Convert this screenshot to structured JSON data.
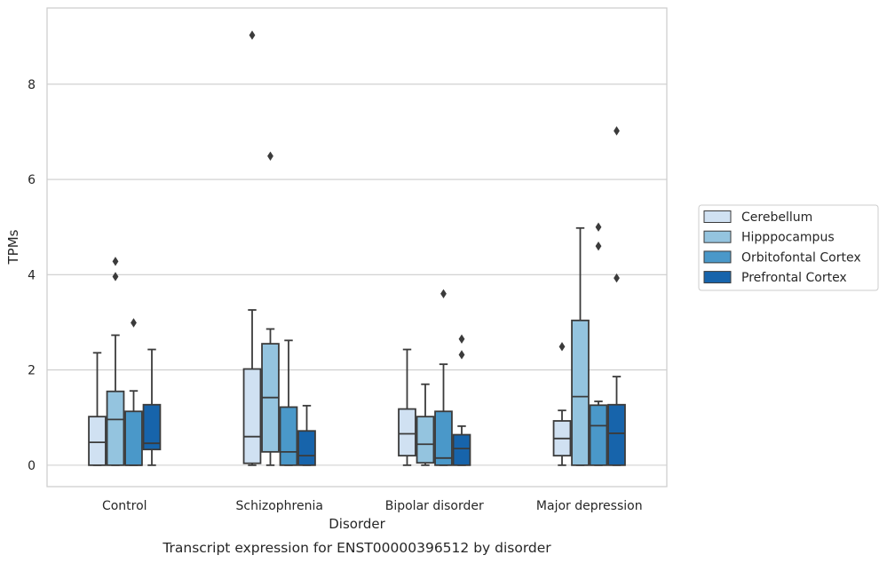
{
  "chart_data": {
    "type": "box",
    "caption": "Transcript expression for ENST00000396512 by disorder",
    "xlabel": "Disorder",
    "ylabel": "TPMs",
    "ylim": [
      -0.45,
      9.6
    ],
    "yticks": [
      0,
      2,
      4,
      6,
      8
    ],
    "grid": "horizontal",
    "legend_position": "right",
    "categories": [
      "Control",
      "Schizophrenia",
      "Bipolar disorder",
      "Major depression"
    ],
    "series": [
      {
        "name": "Cerebellum",
        "color": "#d0e1f2",
        "boxes": [
          {
            "whislo": 0.0,
            "q1": 0.0,
            "med": 0.48,
            "q3": 1.02,
            "whishi": 2.36,
            "fliers": []
          },
          {
            "whislo": 0.0,
            "q1": 0.04,
            "med": 0.6,
            "q3": 2.02,
            "whishi": 3.26,
            "fliers": [
              9.03
            ]
          },
          {
            "whislo": 0.0,
            "q1": 0.2,
            "med": 0.66,
            "q3": 1.18,
            "whishi": 2.43,
            "fliers": []
          },
          {
            "whislo": 0.0,
            "q1": 0.2,
            "med": 0.56,
            "q3": 0.93,
            "whishi": 1.15,
            "fliers": [
              2.49
            ]
          }
        ]
      },
      {
        "name": "Hipppocampus",
        "color": "#94c4df",
        "boxes": [
          {
            "whislo": 0.0,
            "q1": 0.0,
            "med": 0.96,
            "q3": 1.55,
            "whishi": 2.73,
            "fliers": [
              3.96,
              4.28
            ]
          },
          {
            "whislo": 0.0,
            "q1": 0.28,
            "med": 1.42,
            "q3": 2.55,
            "whishi": 2.86,
            "fliers": [
              6.49
            ]
          },
          {
            "whislo": 0.0,
            "q1": 0.05,
            "med": 0.44,
            "q3": 1.02,
            "whishi": 1.7,
            "fliers": []
          },
          {
            "whislo": 0.0,
            "q1": 0.0,
            "med": 1.44,
            "q3": 3.04,
            "whishi": 4.98,
            "fliers": []
          }
        ]
      },
      {
        "name": "Orbitofontal Cortex",
        "color": "#4a98c9",
        "boxes": [
          {
            "whislo": 0.0,
            "q1": 0.0,
            "med": 0.0,
            "q3": 1.13,
            "whishi": 1.56,
            "fliers": [
              2.99
            ]
          },
          {
            "whislo": 0.0,
            "q1": 0.0,
            "med": 0.28,
            "q3": 1.22,
            "whishi": 2.62,
            "fliers": []
          },
          {
            "whislo": 0.0,
            "q1": 0.0,
            "med": 0.15,
            "q3": 1.13,
            "whishi": 2.12,
            "fliers": [
              3.6
            ]
          },
          {
            "whislo": 0.0,
            "q1": 0.0,
            "med": 0.83,
            "q3": 1.26,
            "whishi": 1.34,
            "fliers": [
              4.6,
              5.0
            ]
          }
        ]
      },
      {
        "name": "Prefrontal Cortex",
        "color": "#1764ab",
        "boxes": [
          {
            "whislo": 0.0,
            "q1": 0.33,
            "med": 0.46,
            "q3": 1.27,
            "whishi": 2.43,
            "fliers": []
          },
          {
            "whislo": 0.0,
            "q1": 0.0,
            "med": 0.2,
            "q3": 0.72,
            "whishi": 1.25,
            "fliers": []
          },
          {
            "whislo": 0.0,
            "q1": 0.0,
            "med": 0.35,
            "q3": 0.64,
            "whishi": 0.82,
            "fliers": [
              2.32,
              2.65
            ]
          },
          {
            "whislo": 0.0,
            "q1": 0.0,
            "med": 0.67,
            "q3": 1.27,
            "whishi": 1.86,
            "fliers": [
              3.93,
              7.02
            ]
          }
        ]
      }
    ]
  }
}
